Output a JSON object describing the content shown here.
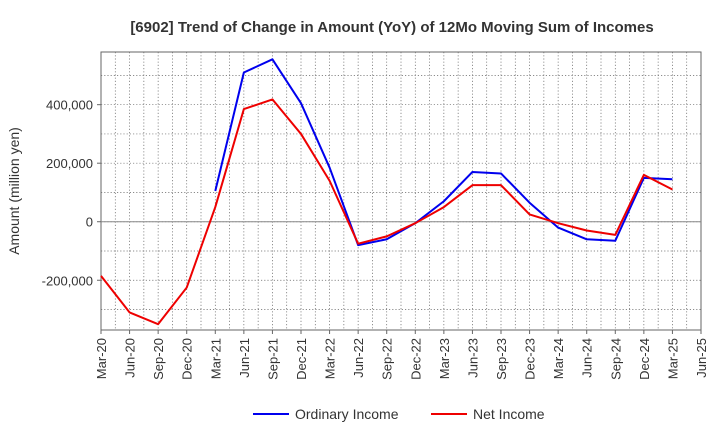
{
  "chart_data": {
    "type": "line",
    "title": "[6902]  Trend of Change in Amount (YoY) of 12Mo Moving Sum of Incomes",
    "xlabel": "",
    "ylabel": "Amount (million yen)",
    "categories": [
      "Mar-20",
      "Jun-20",
      "Sep-20",
      "Dec-20",
      "Mar-21",
      "Jun-21",
      "Sep-21",
      "Dec-21",
      "Mar-22",
      "Jun-22",
      "Sep-22",
      "Dec-22",
      "Mar-23",
      "Jun-23",
      "Sep-23",
      "Dec-23",
      "Mar-24",
      "Jun-24",
      "Sep-24",
      "Dec-24",
      "Mar-25",
      "Jun-25"
    ],
    "ylim": [
      -370000,
      580000
    ],
    "yticks": [
      -200000,
      0,
      200000,
      400000
    ],
    "ytick_labels": [
      "-200,000",
      "0",
      "200,000",
      "400,000"
    ],
    "grid": true,
    "legend_position": "bottom-center",
    "series": [
      {
        "name": "Ordinary Income",
        "color": "#0000ee",
        "values": [
          null,
          null,
          null,
          null,
          105000,
          510000,
          555000,
          405000,
          185000,
          -80000,
          -60000,
          -5000,
          70000,
          170000,
          165000,
          65000,
          -20000,
          -60000,
          -65000,
          150000,
          145000,
          null
        ]
      },
      {
        "name": "Net Income",
        "color": "#ee0000",
        "values": [
          -185000,
          -310000,
          -350000,
          -225000,
          50000,
          385000,
          418000,
          300000,
          140000,
          -75000,
          -50000,
          -5000,
          50000,
          125000,
          125000,
          25000,
          -5000,
          -30000,
          -45000,
          160000,
          110000,
          null
        ]
      }
    ]
  }
}
